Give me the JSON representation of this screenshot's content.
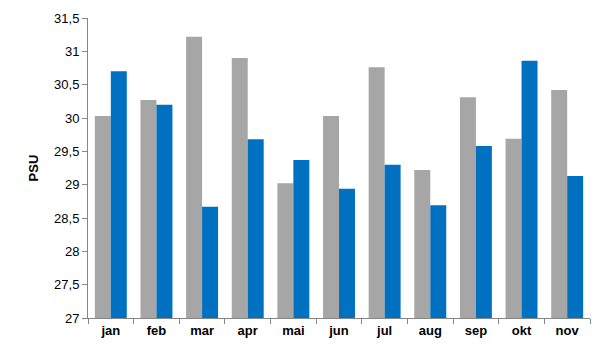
{
  "chart_data": {
    "type": "bar",
    "y_label": "PSU",
    "categories": [
      "jan",
      "feb",
      "mar",
      "apr",
      "mai",
      "jun",
      "jul",
      "aug",
      "sep",
      "okt",
      "nov"
    ],
    "series": [
      {
        "color": "#a6a6a6",
        "values": [
          30.03,
          30.27,
          31.22,
          30.9,
          29.02,
          30.03,
          30.76,
          29.22,
          30.31,
          29.69,
          30.42
        ]
      },
      {
        "color": "#0070c0",
        "values": [
          30.7,
          30.2,
          28.67,
          29.68,
          29.37,
          28.94,
          29.3,
          28.69,
          29.58,
          30.86,
          29.13
        ]
      }
    ],
    "ylim": [
      27,
      31.5
    ],
    "yticks": [
      27,
      {
        "value": 27.5,
        "label": "27,5"
      },
      28,
      {
        "value": 28.5,
        "label": "28,5"
      },
      29,
      {
        "value": 29.5,
        "label": "29,5"
      },
      30,
      {
        "value": 30.5,
        "label": "30,5"
      },
      31,
      {
        "value": 31.5,
        "label": "31,5"
      }
    ],
    "grid": false
  }
}
